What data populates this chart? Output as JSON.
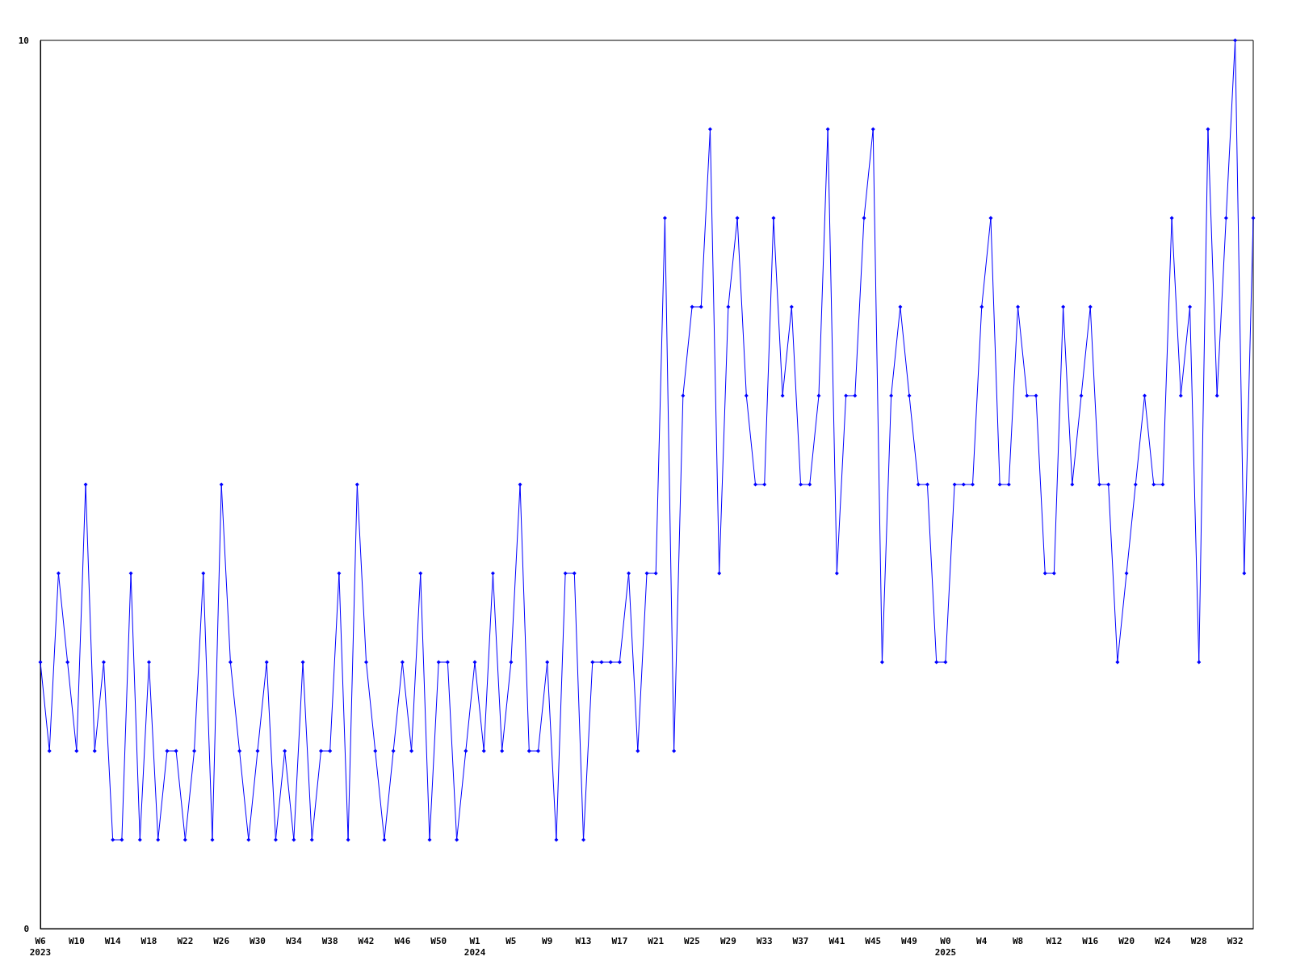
{
  "chart_data": {
    "type": "line",
    "categories": [
      "W6\n2023",
      null,
      null,
      null,
      "W10",
      null,
      null,
      null,
      "W14",
      null,
      null,
      null,
      "W18",
      null,
      null,
      null,
      "W22",
      null,
      null,
      null,
      "W26",
      null,
      null,
      null,
      "W30",
      null,
      null,
      null,
      "W34",
      null,
      null,
      null,
      "W38",
      null,
      null,
      null,
      "W42",
      null,
      null,
      null,
      "W46",
      null,
      null,
      null,
      "W50",
      null,
      null,
      null,
      "W1\n2024",
      null,
      null,
      null,
      "W5",
      null,
      null,
      null,
      "W9",
      null,
      null,
      null,
      "W13",
      null,
      null,
      null,
      "W17",
      null,
      null,
      null,
      "W21",
      null,
      null,
      null,
      "W25",
      null,
      null,
      null,
      "W29",
      null,
      null,
      null,
      "W33",
      null,
      null,
      null,
      "W37",
      null,
      null,
      null,
      "W41",
      null,
      null,
      null,
      "W45",
      null,
      null,
      null,
      "W49",
      null,
      null,
      null,
      "W0\n2025",
      null,
      null,
      null,
      "W4",
      null,
      null,
      null,
      "W8",
      null,
      null,
      null,
      "W12",
      null,
      null,
      null,
      "W16",
      null,
      null,
      null,
      "W20",
      null,
      null,
      null,
      "W24",
      null,
      null,
      null,
      "W28",
      null,
      null,
      null,
      "W32",
      null,
      null
    ],
    "series": [
      {
        "color": "#0000ff",
        "values": [
          3,
          2,
          4,
          3,
          2,
          5,
          2,
          3,
          1,
          1,
          4,
          1,
          3,
          1,
          2,
          2,
          1,
          2,
          4,
          1,
          5,
          3,
          2,
          1,
          2,
          3,
          1,
          2,
          1,
          3,
          1,
          2,
          2,
          4,
          1,
          5,
          3,
          2,
          1,
          2,
          3,
          2,
          4,
          1,
          3,
          3,
          1,
          2,
          3,
          2,
          4,
          2,
          3,
          5,
          2,
          2,
          3,
          1,
          4,
          4,
          1,
          3,
          3,
          3,
          3,
          4,
          2,
          4,
          4,
          8,
          2,
          6,
          7,
          7,
          9,
          4,
          7,
          8,
          6,
          5,
          5,
          8,
          6,
          7,
          5,
          5,
          6,
          9,
          4,
          6,
          6,
          8,
          9,
          3,
          6,
          7,
          6,
          5,
          5,
          3,
          3,
          5,
          5,
          5,
          7,
          8,
          5,
          5,
          7,
          6,
          6,
          4,
          4,
          7,
          5,
          6,
          7,
          5,
          5,
          3,
          4,
          5,
          6,
          5,
          5,
          8,
          6,
          7,
          3,
          9,
          6,
          8,
          10,
          4,
          8
        ]
      }
    ],
    "ylim": [
      0,
      10
    ],
    "yticks": [
      0,
      10
    ],
    "grid": false,
    "marker": "diamond",
    "line_style": "solid"
  }
}
